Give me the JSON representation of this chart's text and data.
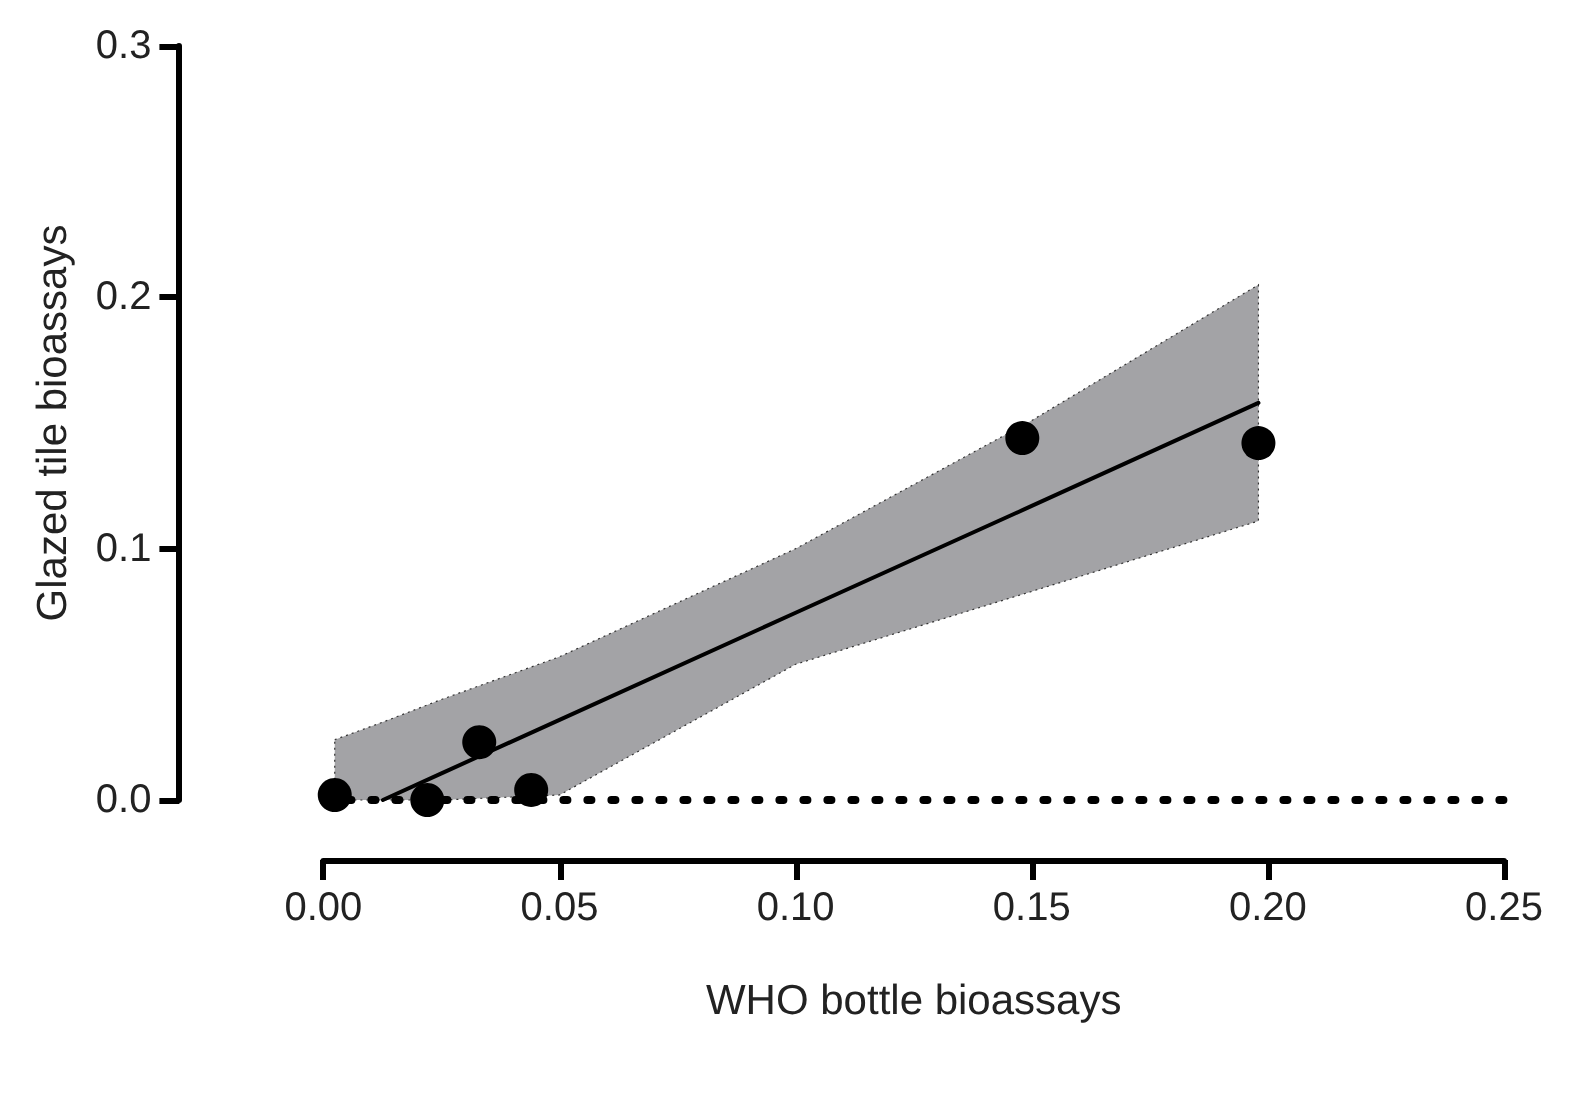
{
  "chart_data": {
    "type": "scatter",
    "xlabel": "WHO bottle bioassays",
    "ylabel": "Glazed tile bioassays",
    "xlim": [
      0,
      0.25
    ],
    "xticks": [
      {
        "value": 0,
        "label": "0.00"
      },
      {
        "value": 0.05,
        "label": "0.05"
      },
      {
        "value": 0.1,
        "label": "0.10"
      },
      {
        "value": 0.15,
        "label": "0.15"
      },
      {
        "value": 0.2,
        "label": "0.20"
      },
      {
        "value": 0.25,
        "label": "0.25"
      }
    ],
    "ylim": [
      0,
      0.3
    ],
    "yticks": [
      {
        "value": 0,
        "label": "0.0"
      },
      {
        "value": 0.1,
        "label": "0.1"
      },
      {
        "value": 0.2,
        "label": "0.2"
      },
      {
        "value": 0.3,
        "label": "0.3"
      }
    ],
    "marker": "circle",
    "series": [
      {
        "color": "#000000",
        "x": [
          0.0024,
          0.022,
          0.033,
          0.044,
          0.148,
          0.198
        ],
        "values": [
          0.002,
          0,
          0.023,
          0.004,
          0.144,
          0.142
        ]
      },
      {
        "type": "line",
        "color": "#000000",
        "line_style": "solid",
        "marker": "none",
        "x": [
          0.0024,
          0.0126,
          0.025,
          0.05,
          0.1,
          0.15,
          0.198
        ],
        "values": [
          null,
          0,
          0.0106,
          0.0319,
          0.0745,
          0.117,
          0.158
        ],
        "lower": [
          0,
          0,
          0,
          0.002,
          0.054,
          0.083,
          0.111
        ],
        "upper": [
          0.024,
          0.031,
          0.04,
          0.057,
          0.1,
          0.151,
          0.205
        ]
      }
    ],
    "ref_lines": [
      {
        "axis": "y",
        "value": 0,
        "color": "#000000",
        "line_style": "dotted"
      }
    ]
  }
}
